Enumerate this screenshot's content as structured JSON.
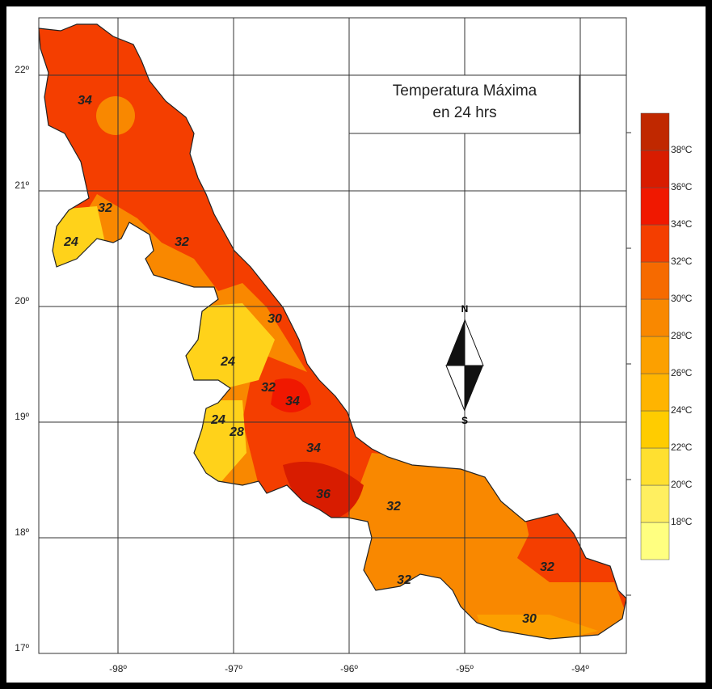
{
  "title": [
    "Temperatura Máxima",
    "en 24 hrs"
  ],
  "lat_labels": [
    "22º",
    "21º",
    "20º",
    "19º",
    "18º",
    "17º"
  ],
  "lon_labels": [
    "-98º",
    "-97º",
    "-96º",
    "-95º",
    "-94º"
  ],
  "compass": {
    "north": "N",
    "south": "S"
  },
  "legend": {
    "labels": [
      "18ºC",
      "20ºC",
      "22ºC",
      "24ºC",
      "26ºC",
      "28ºC",
      "30ºC",
      "32ºC",
      "34ºC",
      "36ºC",
      "38ºC"
    ],
    "colors": [
      "#ffff80",
      "#ffef60",
      "#ffe030",
      "#ffcc00",
      "#ffb400",
      "#fca000",
      "#f98800",
      "#f66a00",
      "#f43e00",
      "#f01800",
      "#d81c00",
      "#c02800"
    ]
  },
  "contour_labels": [
    "34",
    "32",
    "24",
    "32",
    "30",
    "24",
    "32",
    "34",
    "24",
    "28",
    "34",
    "36",
    "32",
    "32",
    "32",
    "30"
  ]
}
